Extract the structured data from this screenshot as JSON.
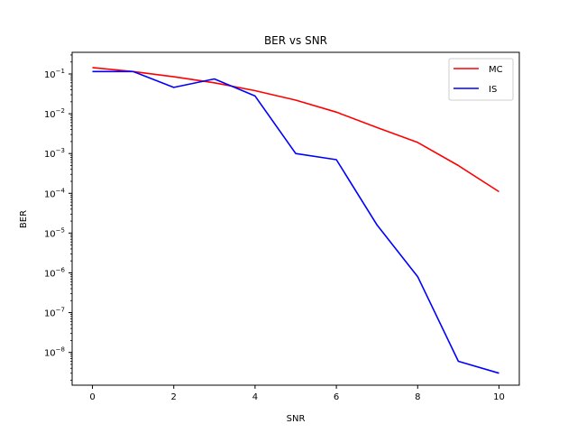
{
  "chart_data": {
    "type": "line",
    "title": "BER vs SNR",
    "xlabel": "SNR",
    "ylabel": "BER",
    "yscale": "log",
    "xlim": [
      -0.5,
      10.5
    ],
    "ylim": [
      1.5e-09,
      0.35
    ],
    "x": [
      0,
      1,
      2,
      3,
      4,
      5,
      6,
      7,
      8,
      9,
      10
    ],
    "x_ticks": [
      0,
      2,
      4,
      6,
      8,
      10
    ],
    "y_tick_exponents": [
      -8,
      -7,
      -6,
      -5,
      -4,
      -3,
      -2,
      -1
    ],
    "y_tick_base": "10",
    "grid": false,
    "legend_position": "top-right",
    "series": [
      {
        "name": "MC",
        "color": "#ff0000",
        "values": [
          0.145,
          0.115,
          0.085,
          0.06,
          0.038,
          0.022,
          0.011,
          0.0045,
          0.0019,
          0.0005,
          0.00011
        ]
      },
      {
        "name": "IS",
        "color": "#0000ff",
        "values": [
          0.115,
          0.115,
          0.046,
          0.075,
          0.028,
          0.001,
          0.0007,
          1.6e-05,
          8e-07,
          6e-09,
          3e-09
        ]
      }
    ]
  }
}
